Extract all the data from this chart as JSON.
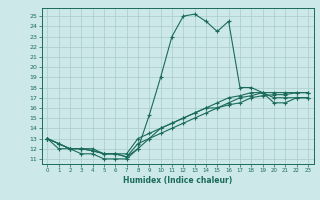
{
  "xlabel": "Humidex (Indice chaleur)",
  "bg_color": "#cce8e8",
  "grid_color": "#aacccc",
  "line_color": "#1a6b5a",
  "xlim": [
    -0.5,
    23.5
  ],
  "ylim": [
    10.5,
    25.8
  ],
  "yticks": [
    11,
    12,
    13,
    14,
    15,
    16,
    17,
    18,
    19,
    20,
    21,
    22,
    23,
    24,
    25
  ],
  "xticks": [
    0,
    1,
    2,
    3,
    4,
    5,
    6,
    7,
    8,
    9,
    10,
    11,
    12,
    13,
    14,
    15,
    16,
    17,
    18,
    19,
    20,
    21,
    22,
    23
  ],
  "curve1_x": [
    0,
    1,
    2,
    3,
    4,
    5,
    6,
    7,
    8,
    9,
    10,
    11,
    12,
    13,
    14,
    15,
    16,
    17,
    18,
    19,
    20,
    21,
    22,
    23
  ],
  "curve1_y": [
    13,
    12,
    12,
    11.5,
    11.5,
    11,
    11,
    11,
    12,
    15.3,
    19,
    23,
    25,
    25.2,
    24.5,
    23.5,
    24.5,
    18,
    18,
    17.5,
    16.5,
    16.5,
    17,
    17
  ],
  "curve2_x": [
    0,
    1,
    2,
    3,
    4,
    5,
    6,
    7,
    8,
    9,
    10,
    11,
    12,
    13,
    14,
    15,
    16,
    17,
    18,
    19,
    20,
    21,
    22,
    23
  ],
  "curve2_y": [
    13,
    12.5,
    12,
    12,
    12,
    11.5,
    11.5,
    11.5,
    13,
    13.5,
    14,
    14.5,
    15,
    15.5,
    16,
    16,
    16.5,
    17,
    17.2,
    17.5,
    17.5,
    17.5,
    17.5,
    17.5
  ],
  "curve3_x": [
    0,
    1,
    2,
    3,
    4,
    5,
    6,
    7,
    8,
    9,
    10,
    11,
    12,
    13,
    14,
    15,
    16,
    17,
    18,
    19,
    20,
    21,
    22,
    23
  ],
  "curve3_y": [
    13,
    12.5,
    12,
    12,
    11.8,
    11.5,
    11.5,
    11.2,
    12.5,
    13,
    13.5,
    14,
    14.5,
    15,
    15.5,
    16,
    16.3,
    16.5,
    17,
    17.2,
    17.3,
    17.3,
    17.5,
    17.5
  ],
  "curve4_x": [
    0,
    1,
    2,
    3,
    4,
    5,
    6,
    7,
    8,
    9,
    10,
    11,
    12,
    13,
    14,
    15,
    16,
    17,
    18,
    19,
    20,
    21,
    22,
    23
  ],
  "curve4_y": [
    13,
    12.5,
    12,
    12,
    11.8,
    11.5,
    11.5,
    11.2,
    12,
    13,
    14,
    14.5,
    15,
    15.5,
    16,
    16.5,
    17,
    17.2,
    17.5,
    17.5,
    17,
    17,
    17,
    17
  ]
}
